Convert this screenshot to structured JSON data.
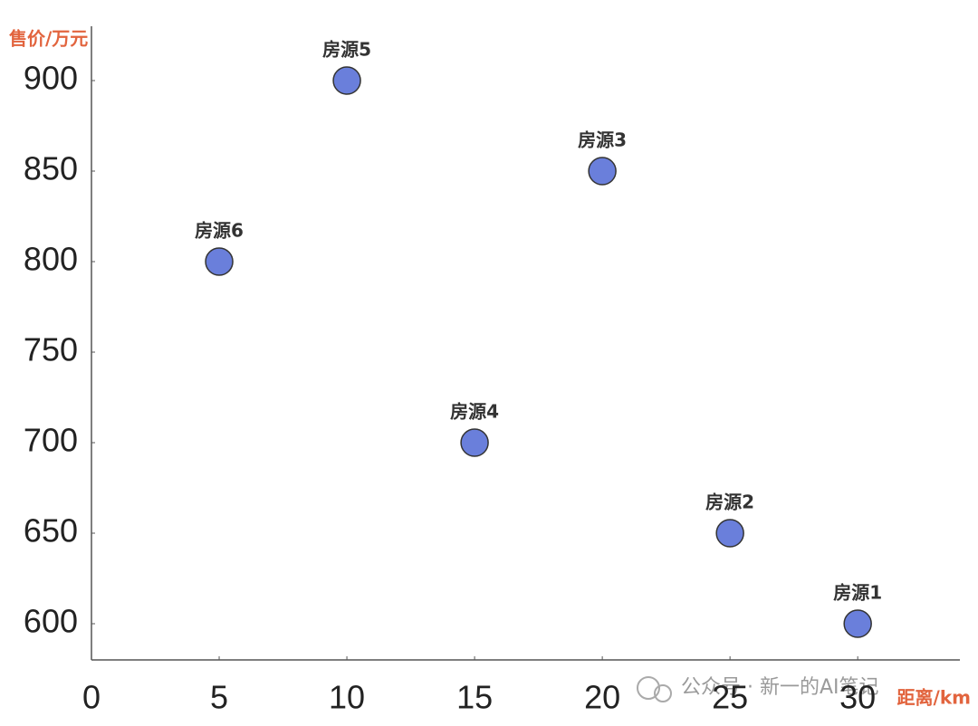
{
  "chart_data": {
    "type": "scatter",
    "y_label": "售价/万元",
    "x_label": "距离/km",
    "watermark": "公众号 · 新一的AI笔记",
    "series": [
      {
        "name": "房源",
        "color": "#6a7fdb",
        "x": [
          30,
          25,
          20,
          15,
          10,
          5
        ],
        "values": [
          600,
          650,
          850,
          700,
          900,
          800
        ],
        "point_labels": [
          "房源1",
          "房源2",
          "房源3",
          "房源4",
          "房源5",
          "房源6"
        ]
      }
    ],
    "xlim": [
      0,
      34
    ],
    "ylim": [
      580,
      930
    ],
    "xticks": [
      0,
      5,
      10,
      15,
      20,
      25,
      30
    ],
    "yticks": [
      600,
      650,
      700,
      750,
      800,
      850,
      900
    ],
    "grid": false
  }
}
